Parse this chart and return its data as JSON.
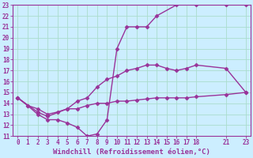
{
  "line1_x": [
    0,
    1,
    2,
    3,
    4,
    5,
    6,
    7,
    8,
    9,
    10,
    11,
    12,
    13,
    14,
    16,
    18,
    21,
    23
  ],
  "line1_y": [
    14.5,
    13.8,
    13.0,
    12.5,
    12.5,
    12.2,
    11.8,
    11.0,
    11.2,
    12.5,
    19.0,
    21.0,
    21.0,
    21.0,
    22.0,
    23.0,
    23.0,
    23.0,
    23.0
  ],
  "line2_x": [
    0,
    2,
    3,
    5,
    6,
    7,
    8,
    9,
    10,
    11,
    12,
    13,
    14,
    15,
    16,
    17,
    18,
    21,
    23
  ],
  "line2_y": [
    14.5,
    13.2,
    12.8,
    13.5,
    14.2,
    14.5,
    15.5,
    16.2,
    16.5,
    17.0,
    17.2,
    17.5,
    17.5,
    17.2,
    17.0,
    17.2,
    17.5,
    17.2,
    15.0
  ],
  "line3_x": [
    0,
    1,
    2,
    3,
    4,
    5,
    6,
    7,
    8,
    9,
    10,
    11,
    12,
    13,
    14,
    15,
    16,
    17,
    18,
    21,
    23
  ],
  "line3_y": [
    14.5,
    13.8,
    13.5,
    13.0,
    13.2,
    13.5,
    13.5,
    13.8,
    14.0,
    14.0,
    14.2,
    14.2,
    14.3,
    14.4,
    14.5,
    14.5,
    14.5,
    14.5,
    14.6,
    14.8,
    15.0
  ],
  "line_color": "#993399",
  "bg_color": "#cceeff",
  "grid_color": "#aaddcc",
  "xlabel": "Windchill (Refroidissement éolien,°C)",
  "xlim": [
    -0.5,
    23.5
  ],
  "ylim": [
    11,
    23
  ],
  "xticks": [
    0,
    1,
    2,
    3,
    4,
    5,
    6,
    7,
    8,
    9,
    10,
    11,
    12,
    13,
    14,
    15,
    16,
    17,
    18,
    21,
    23
  ],
  "yticks": [
    11,
    12,
    13,
    14,
    15,
    16,
    17,
    18,
    19,
    20,
    21,
    22,
    23
  ],
  "marker": "D",
  "markersize": 2.5,
  "linewidth": 1.0,
  "xlabel_fontsize": 6.5,
  "tick_fontsize": 5.5,
  "font_family": "monospace"
}
